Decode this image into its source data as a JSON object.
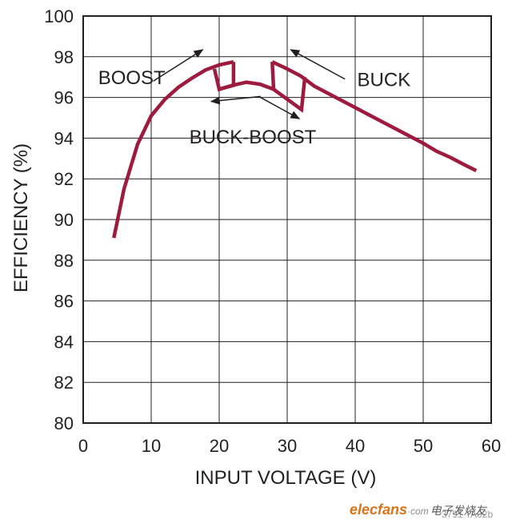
{
  "chart_data": {
    "type": "line",
    "xlabel": "INPUT VOLTAGE (V)",
    "ylabel": "EFFICIENCY (%)",
    "xlim": [
      0,
      60
    ],
    "ylim": [
      80,
      100
    ],
    "x_ticks": [
      "0",
      "10",
      "20",
      "30",
      "40",
      "50",
      "60"
    ],
    "y_ticks": [
      "80",
      "82",
      "84",
      "86",
      "88",
      "90",
      "92",
      "94",
      "96",
      "98",
      "100"
    ],
    "grid": true,
    "line_color": "#9e1b3f",
    "series": [
      {
        "mode": "boost",
        "x": [
          4.5,
          6,
          8,
          10,
          12,
          14,
          16,
          18,
          20,
          22.1
        ],
        "y": [
          89.1,
          91.5,
          93.7,
          95.1,
          95.9,
          96.5,
          96.95,
          97.35,
          97.6,
          97.75
        ]
      },
      {
        "mode": "boost-to-buckboost transition",
        "x": [
          19.3,
          20,
          22.1,
          22.1
        ],
        "y": [
          97.4,
          96.4,
          96.6,
          97.75
        ]
      },
      {
        "mode": "buck-boost",
        "x": [
          20,
          22,
          24,
          26,
          28
        ],
        "y": [
          96.4,
          96.6,
          96.75,
          96.65,
          96.4
        ]
      },
      {
        "mode": "buck",
        "x": [
          27.8,
          30,
          32,
          34,
          36,
          38,
          40,
          42,
          44,
          46,
          48,
          50,
          52,
          54,
          56,
          57.8
        ],
        "y": [
          97.75,
          97.4,
          97.05,
          96.55,
          96.2,
          95.85,
          95.5,
          95.15,
          94.8,
          94.45,
          94.1,
          93.75,
          93.35,
          93.05,
          92.7,
          92.4
        ]
      },
      {
        "mode": "buck-to-buckboost transition",
        "x": [
          27.8,
          28,
          32.1,
          32.6
        ],
        "y": [
          97.75,
          96.4,
          95.4,
          97.0
        ]
      }
    ],
    "annotations": [
      {
        "text": "BOOST",
        "x": 2.2,
        "y": 96.65
      },
      {
        "text": "BUCK",
        "x": 40.3,
        "y": 96.55
      },
      {
        "text": "BUCK-BOOST",
        "x": 15.6,
        "y": 93.75
      }
    ],
    "arrows": [
      {
        "from": [
          10.3,
          96.8
        ],
        "to": [
          17.6,
          98.35
        ]
      },
      {
        "from": [
          38.5,
          96.9
        ],
        "to": [
          30.5,
          98.35
        ]
      },
      {
        "from": [
          26.1,
          96.05
        ],
        "to": [
          18.8,
          95.8
        ]
      },
      {
        "from": [
          25.8,
          96.05
        ],
        "to": [
          31.8,
          94.95
        ]
      }
    ]
  },
  "watermark": {
    "code": "3791 TA02b"
  },
  "brand": {
    "name": "elecfans",
    "suffix": "·com",
    "cn": "电子发烧友"
  }
}
